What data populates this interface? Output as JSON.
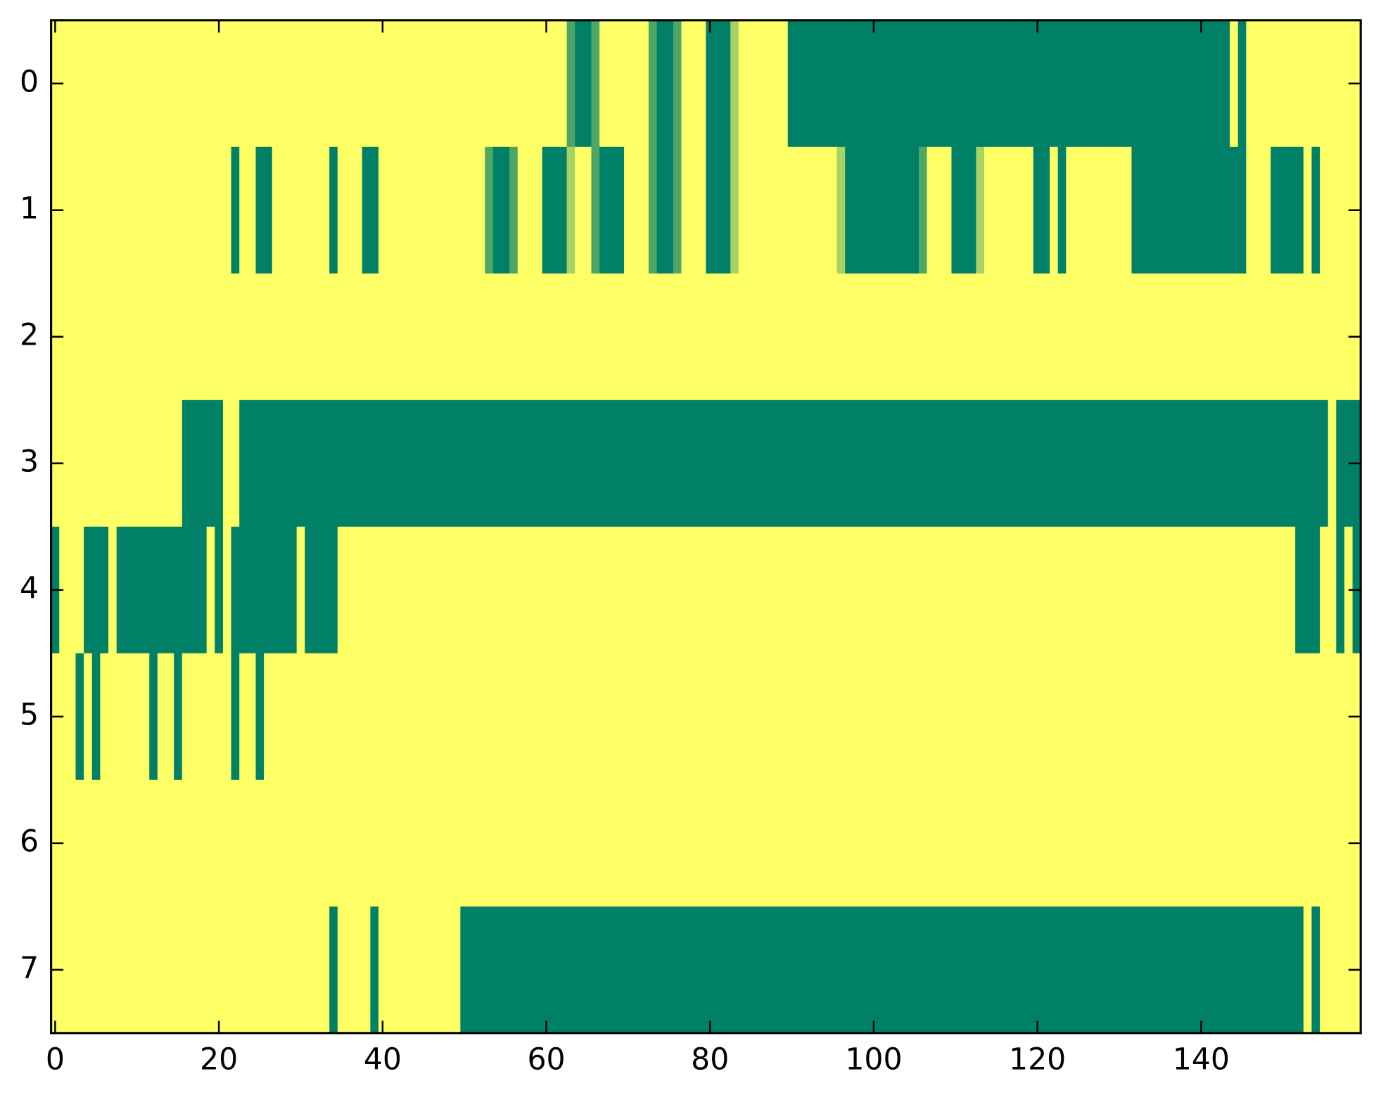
{
  "chart_data": {
    "type": "heatmap",
    "colormap": "summer",
    "xlim": [
      -0.5,
      159.5
    ],
    "ylim": [
      7.5,
      -0.5
    ],
    "xticks": [
      0,
      20,
      40,
      60,
      80,
      100,
      120,
      140
    ],
    "yticks": [
      0,
      1,
      2,
      3,
      4,
      5,
      6,
      7
    ],
    "z": [
      [
        1,
        1,
        1,
        1,
        1,
        1,
        1,
        1,
        1,
        1,
        1,
        1,
        1,
        1,
        1,
        1,
        1,
        1,
        1,
        1,
        1,
        1,
        1,
        1,
        1,
        1,
        1,
        1,
        1,
        1,
        1,
        1,
        1,
        1,
        1,
        1,
        1,
        1,
        1,
        1,
        1,
        1,
        1,
        1,
        1,
        1,
        1,
        1,
        1,
        1,
        1,
        1,
        1,
        1,
        1,
        1,
        1,
        1,
        1,
        1,
        1,
        1,
        1,
        0.3,
        0,
        0,
        0.3,
        1,
        1,
        1,
        1,
        1,
        1,
        0.3,
        0,
        0,
        0.3,
        1,
        1,
        1,
        0,
        0,
        0,
        0.65,
        1,
        1,
        1,
        1,
        1,
        1,
        0,
        0,
        0,
        0,
        0,
        0,
        0,
        0,
        0,
        0,
        0,
        0,
        0,
        0,
        0,
        0,
        0,
        0,
        0,
        0,
        0,
        0,
        0,
        0,
        0,
        0,
        0,
        0,
        0,
        0,
        0,
        0,
        0,
        0,
        0,
        0,
        0,
        0,
        0,
        0,
        0,
        0,
        0,
        0,
        0,
        0,
        0,
        0,
        0,
        0,
        0,
        0,
        0,
        0,
        1,
        0,
        1,
        1,
        1,
        1,
        1,
        1,
        1,
        1,
        1,
        1,
        1,
        1,
        1,
        1
      ],
      [
        1,
        1,
        1,
        1,
        1,
        1,
        1,
        1,
        1,
        1,
        1,
        1,
        1,
        1,
        1,
        1,
        1,
        1,
        1,
        1,
        1,
        1,
        0,
        1,
        1,
        0,
        0,
        1,
        1,
        1,
        1,
        1,
        1,
        1,
        0,
        1,
        1,
        1,
        0,
        0,
        1,
        1,
        1,
        1,
        1,
        1,
        1,
        1,
        1,
        1,
        1,
        1,
        1,
        0.3,
        0,
        0,
        0.3,
        1,
        1,
        1,
        0,
        0,
        0,
        0.65,
        1,
        1,
        0.3,
        0,
        0,
        0,
        1,
        1,
        1,
        0.3,
        0,
        0,
        0.3,
        1,
        1,
        1,
        0,
        0,
        0,
        0.65,
        1,
        1,
        1,
        1,
        1,
        1,
        1,
        1,
        1,
        1,
        1,
        1,
        0.65,
        0,
        0,
        0,
        0,
        0,
        0,
        0,
        0,
        0,
        0.3,
        1,
        1,
        1,
        0,
        0,
        0,
        0.65,
        1,
        1,
        1,
        1,
        1,
        1,
        0,
        0,
        1,
        0,
        1,
        1,
        1,
        1,
        1,
        1,
        1,
        1,
        0,
        0,
        0,
        0,
        0,
        0,
        0,
        0,
        0,
        0,
        0,
        0,
        0,
        0,
        1,
        1,
        1,
        0,
        0,
        0,
        0,
        1,
        0,
        1,
        1,
        1,
        1,
        1
      ],
      [
        1,
        1,
        1,
        1,
        1,
        1,
        1,
        1,
        1,
        1,
        1,
        1,
        1,
        1,
        1,
        1,
        1,
        1,
        1,
        1,
        1,
        1,
        1,
        1,
        1,
        1,
        1,
        1,
        1,
        1,
        1,
        1,
        1,
        1,
        1,
        1,
        1,
        1,
        1,
        1,
        1,
        1,
        1,
        1,
        1,
        1,
        1,
        1,
        1,
        1,
        1,
        1,
        1,
        1,
        1,
        1,
        1,
        1,
        1,
        1,
        1,
        1,
        1,
        1,
        1,
        1,
        1,
        1,
        1,
        1,
        1,
        1,
        1,
        1,
        1,
        1,
        1,
        1,
        1,
        1,
        1,
        1,
        1,
        1,
        1,
        1,
        1,
        1,
        1,
        1,
        1,
        1,
        1,
        1,
        1,
        1,
        1,
        1,
        1,
        1,
        1,
        1,
        1,
        1,
        1,
        1,
        1,
        1,
        1,
        1,
        1,
        1,
        1,
        1,
        1,
        1,
        1,
        1,
        1,
        1,
        1,
        1,
        1,
        1,
        1,
        1,
        1,
        1,
        1,
        1,
        1,
        1,
        1,
        1,
        1,
        1,
        1,
        1,
        1,
        1,
        1,
        1,
        1,
        1,
        1,
        1,
        1,
        1,
        1,
        1,
        1,
        1,
        1,
        1,
        1,
        1,
        1,
        1,
        1,
        1
      ],
      [
        1,
        1,
        1,
        1,
        1,
        1,
        1,
        1,
        1,
        1,
        1,
        1,
        1,
        1,
        1,
        1,
        0,
        0,
        0,
        0,
        0,
        1,
        1,
        0,
        0,
        0,
        0,
        0,
        0,
        0,
        0,
        0,
        0,
        0,
        0,
        0,
        0,
        0,
        0,
        0,
        0,
        0,
        0,
        0,
        0,
        0,
        0,
        0,
        0,
        0,
        0,
        0,
        0,
        0,
        0,
        0,
        0,
        0,
        0,
        0,
        0,
        0,
        0,
        0,
        0,
        0,
        0,
        0,
        0,
        0,
        0,
        0,
        0,
        0,
        0,
        0,
        0,
        0,
        0,
        0,
        0,
        0,
        0,
        0,
        0,
        0,
        0,
        0,
        0,
        0,
        0,
        0,
        0,
        0,
        0,
        0,
        0,
        0,
        0,
        0,
        0,
        0,
        0,
        0,
        0,
        0,
        0,
        0,
        0,
        0,
        0,
        0,
        0,
        0,
        0,
        0,
        0,
        0,
        0,
        0,
        0,
        0,
        0,
        0,
        0,
        0,
        0,
        0,
        0,
        0,
        0,
        0,
        0,
        0,
        0,
        0,
        0,
        0,
        0,
        0,
        0,
        0,
        0,
        0,
        0,
        0,
        0,
        0,
        0,
        0,
        0,
        0,
        0,
        0,
        0,
        0,
        1,
        0,
        0,
        0
      ],
      [
        0,
        1,
        1,
        1,
        0,
        0,
        0,
        1,
        0,
        0,
        0,
        0,
        0,
        0,
        0,
        0,
        0,
        0,
        0,
        1,
        0,
        1,
        0,
        0,
        0,
        0,
        0,
        0,
        0,
        0,
        1,
        0,
        0,
        0,
        0,
        1,
        1,
        1,
        1,
        1,
        1,
        1,
        1,
        1,
        1,
        1,
        1,
        1,
        1,
        1,
        1,
        1,
        1,
        1,
        1,
        1,
        1,
        1,
        1,
        1,
        1,
        1,
        1,
        1,
        1,
        1,
        1,
        1,
        1,
        1,
        1,
        1,
        1,
        1,
        1,
        1,
        1,
        1,
        1,
        1,
        1,
        1,
        1,
        1,
        1,
        1,
        1,
        1,
        1,
        1,
        1,
        1,
        1,
        1,
        1,
        1,
        1,
        1,
        1,
        1,
        1,
        1,
        1,
        1,
        1,
        1,
        1,
        1,
        1,
        1,
        1,
        1,
        1,
        1,
        1,
        1,
        1,
        1,
        1,
        1,
        1,
        1,
        1,
        1,
        1,
        1,
        1,
        1,
        1,
        1,
        1,
        1,
        1,
        1,
        1,
        1,
        1,
        1,
        1,
        1,
        1,
        1,
        1,
        1,
        1,
        1,
        1,
        1,
        1,
        1,
        1,
        1,
        0,
        0,
        0,
        1,
        1,
        0,
        1,
        0
      ],
      [
        1,
        1,
        1,
        0,
        1,
        0,
        1,
        1,
        1,
        1,
        1,
        1,
        0,
        1,
        1,
        0,
        1,
        1,
        1,
        1,
        1,
        1,
        0,
        1,
        1,
        0,
        1,
        1,
        1,
        1,
        1,
        1,
        1,
        1,
        1,
        1,
        1,
        1,
        1,
        1,
        1,
        1,
        1,
        1,
        1,
        1,
        1,
        1,
        1,
        1,
        1,
        1,
        1,
        1,
        1,
        1,
        1,
        1,
        1,
        1,
        1,
        1,
        1,
        1,
        1,
        1,
        1,
        1,
        1,
        1,
        1,
        1,
        1,
        1,
        1,
        1,
        1,
        1,
        1,
        1,
        1,
        1,
        1,
        1,
        1,
        1,
        1,
        1,
        1,
        1,
        1,
        1,
        1,
        1,
        1,
        1,
        1,
        1,
        1,
        1,
        1,
        1,
        1,
        1,
        1,
        1,
        1,
        1,
        1,
        1,
        1,
        1,
        1,
        1,
        1,
        1,
        1,
        1,
        1,
        1,
        1,
        1,
        1,
        1,
        1,
        1,
        1,
        1,
        1,
        1,
        1,
        1,
        1,
        1,
        1,
        1,
        1,
        1,
        1,
        1,
        1,
        1,
        1,
        1,
        1,
        1,
        1,
        1,
        1,
        1,
        1,
        1,
        1,
        1,
        1,
        1,
        1,
        1,
        1,
        1
      ],
      [
        1,
        1,
        1,
        1,
        1,
        1,
        1,
        1,
        1,
        1,
        1,
        1,
        1,
        1,
        1,
        1,
        1,
        1,
        1,
        1,
        1,
        1,
        1,
        1,
        1,
        1,
        1,
        1,
        1,
        1,
        1,
        1,
        1,
        1,
        1,
        1,
        1,
        1,
        1,
        1,
        1,
        1,
        1,
        1,
        1,
        1,
        1,
        1,
        1,
        1,
        1,
        1,
        1,
        1,
        1,
        1,
        1,
        1,
        1,
        1,
        1,
        1,
        1,
        1,
        1,
        1,
        1,
        1,
        1,
        1,
        1,
        1,
        1,
        1,
        1,
        1,
        1,
        1,
        1,
        1,
        1,
        1,
        1,
        1,
        1,
        1,
        1,
        1,
        1,
        1,
        1,
        1,
        1,
        1,
        1,
        1,
        1,
        1,
        1,
        1,
        1,
        1,
        1,
        1,
        1,
        1,
        1,
        1,
        1,
        1,
        1,
        1,
        1,
        1,
        1,
        1,
        1,
        1,
        1,
        1,
        1,
        1,
        1,
        1,
        1,
        1,
        1,
        1,
        1,
        1,
        1,
        1,
        1,
        1,
        1,
        1,
        1,
        1,
        1,
        1,
        1,
        1,
        1,
        1,
        1,
        1,
        1,
        1,
        1,
        1,
        1,
        1,
        1,
        1,
        1,
        1,
        1,
        1,
        1,
        1
      ],
      [
        1,
        1,
        1,
        1,
        1,
        1,
        1,
        1,
        1,
        1,
        1,
        1,
        1,
        1,
        1,
        1,
        1,
        1,
        1,
        1,
        1,
        1,
        1,
        1,
        1,
        1,
        1,
        1,
        1,
        1,
        1,
        1,
        1,
        1,
        0,
        1,
        1,
        1,
        1,
        0,
        1,
        1,
        1,
        1,
        1,
        1,
        1,
        1,
        1,
        1,
        0,
        0,
        0,
        0,
        0,
        0,
        0,
        0,
        0,
        0,
        0,
        0,
        0,
        0,
        0,
        0,
        0,
        0,
        0,
        0,
        0,
        0,
        0,
        0,
        0,
        0,
        0,
        0,
        0,
        0,
        0,
        0,
        0,
        0,
        0,
        0,
        0,
        0,
        0,
        0,
        0,
        0,
        0,
        0,
        0,
        0,
        0,
        0,
        0,
        0,
        0,
        0,
        0,
        0,
        0,
        0,
        0,
        0,
        0,
        0,
        0,
        0,
        0,
        0,
        0,
        0,
        0,
        0,
        0,
        0,
        0,
        0,
        0,
        0,
        0,
        0,
        0,
        0,
        0,
        0,
        0,
        0,
        0,
        0,
        0,
        0,
        0,
        0,
        0,
        0,
        0,
        0,
        0,
        0,
        0,
        0,
        0,
        0,
        0,
        0,
        0,
        0,
        0,
        1,
        0,
        1,
        1,
        1,
        1,
        1
      ]
    ]
  }
}
